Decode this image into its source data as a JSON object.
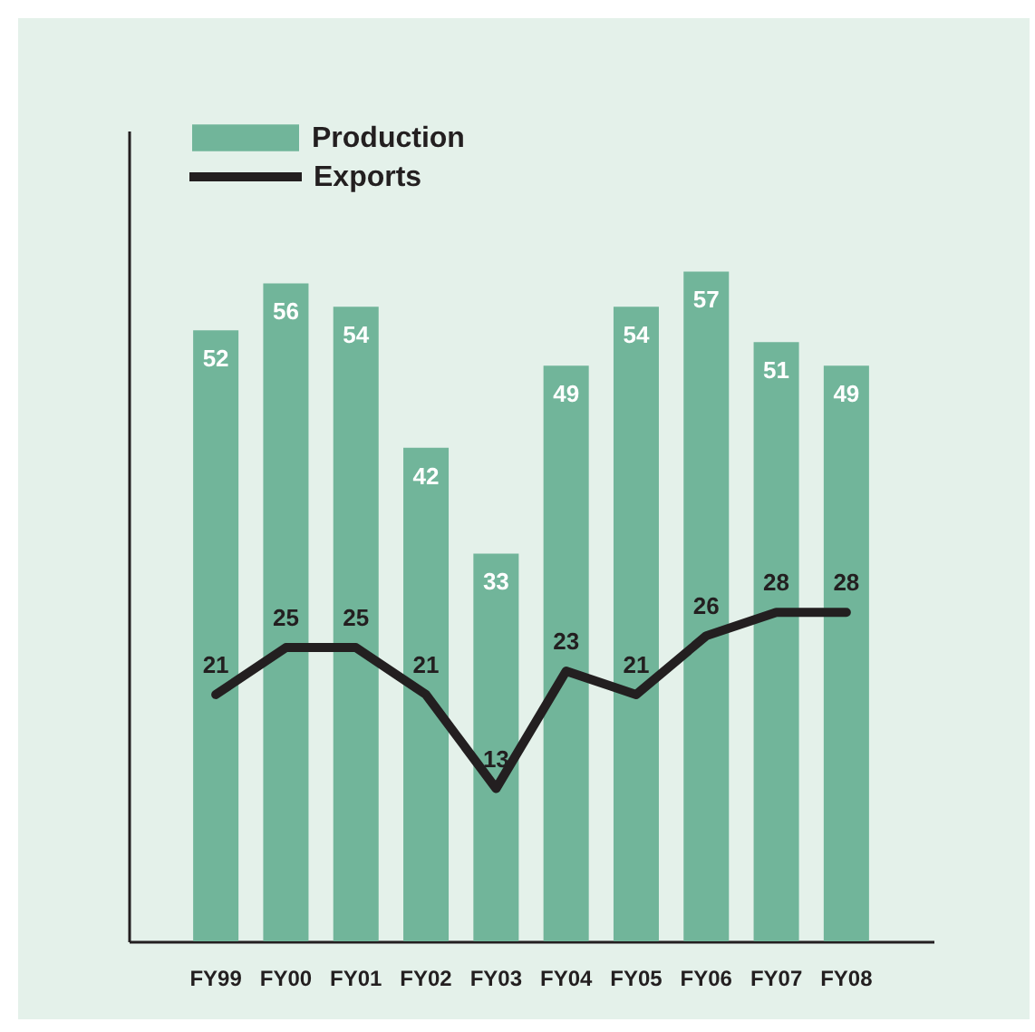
{
  "chart_data": {
    "type": "bar",
    "categories": [
      "FY99",
      "FY00",
      "FY01",
      "FY02",
      "FY03",
      "FY04",
      "FY05",
      "FY06",
      "FY07",
      "FY08"
    ],
    "series": [
      {
        "name": "Production",
        "color": "#71b59a",
        "values": [
          52,
          56,
          54,
          42,
          33,
          49,
          54,
          57,
          51,
          49
        ]
      },
      {
        "name": "Exports",
        "type": "line",
        "color": "#231f20",
        "values": [
          21,
          25,
          25,
          21,
          13,
          23,
          21,
          26,
          28,
          28
        ]
      }
    ],
    "ylim": [
      0,
      69
    ],
    "tick_labels": "x",
    "data_labels": true,
    "legend": "top left"
  }
}
